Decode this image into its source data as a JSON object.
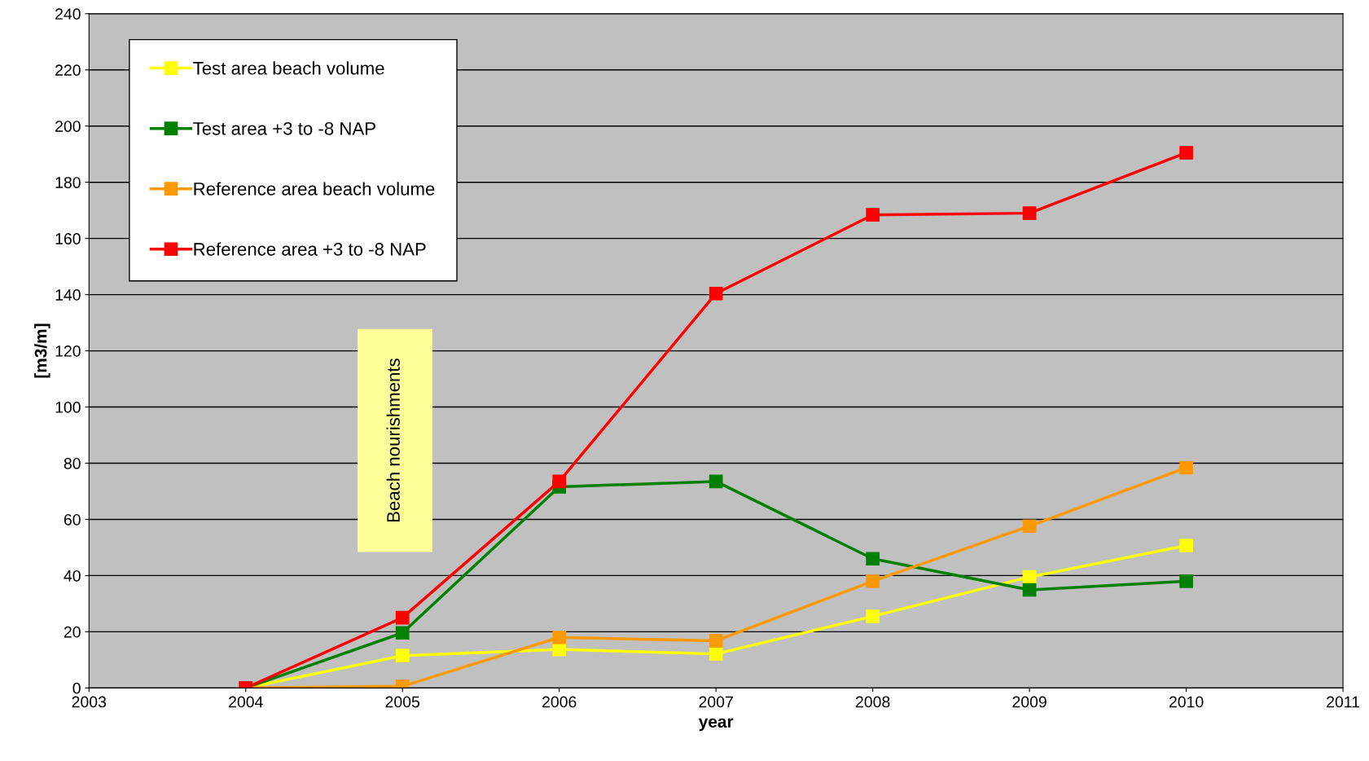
{
  "chart_data": {
    "type": "line",
    "xlabel": "year",
    "ylabel": "[m3/m]",
    "x": [
      2004,
      2005,
      2006,
      2007,
      2008,
      2009,
      2010
    ],
    "series": [
      {
        "name": "Test area beach volume",
        "color": "#ffff00",
        "values": [
          0,
          11.5,
          13.7,
          12.1,
          25.5,
          39.5,
          50.7
        ]
      },
      {
        "name": "Test area +3 to -8 NAP",
        "color": "#008000",
        "values": [
          0,
          19.6,
          71.6,
          73.5,
          46,
          34.9,
          38
        ]
      },
      {
        "name": "Reference area beach volume",
        "color": "#ff9900",
        "values": [
          0,
          0.6,
          18,
          16.8,
          38,
          57.6,
          78.4
        ]
      },
      {
        "name": "Reference area +3 to -8 NAP",
        "color": "#ff0000",
        "values": [
          0,
          25,
          73.5,
          140.4,
          168.4,
          169,
          190.5
        ]
      }
    ],
    "xlim": [
      2003,
      2011
    ],
    "xticks": [
      2003,
      2004,
      2005,
      2006,
      2007,
      2008,
      2009,
      2010,
      2011
    ],
    "ylim": [
      0,
      240
    ],
    "yticks": [
      0,
      20,
      40,
      60,
      80,
      100,
      120,
      140,
      160,
      180,
      200,
      220,
      240
    ],
    "grid": "y",
    "legend": "top left",
    "marker": "square",
    "line_style": "solid",
    "annotations": [
      "Beach nourishments"
    ]
  }
}
